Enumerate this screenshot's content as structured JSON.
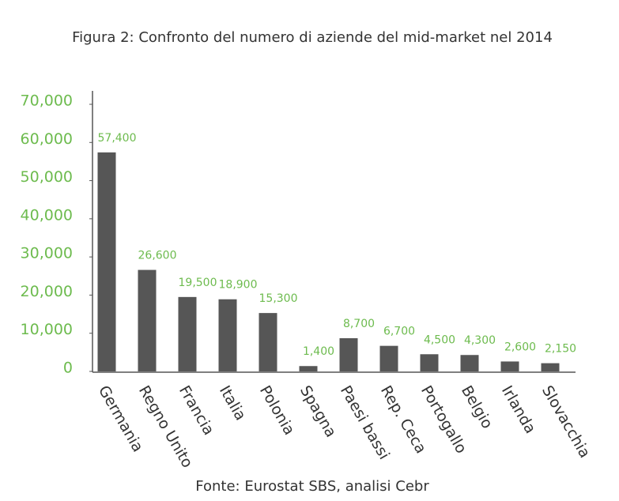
{
  "chart_data": {
    "type": "bar",
    "title": "Figura 2: Confronto del numero di aziende del mid-market nel 2014",
    "source": "Fonte: Eurostat SBS, analisi Cebr",
    "categories": [
      "Germania",
      "Regno Unito",
      "Francia",
      "Italia",
      "Polonia",
      "Spagna",
      "Paesi bassi",
      "Rep. Ceca",
      "Portogallo",
      "Belgio",
      "Irlanda",
      "Slovacchia"
    ],
    "values": [
      57400,
      26600,
      19500,
      18900,
      15300,
      1400,
      8700,
      6700,
      4500,
      4300,
      2600,
      2150
    ],
    "value_labels": [
      "57,400",
      "26,600",
      "19,500",
      "18,900",
      "15,300",
      "1,400",
      "8,700",
      "6,700",
      "4,500",
      "4,300",
      "2,600",
      "2,150"
    ],
    "color": "#565656",
    "label_color": "#6dbb4e",
    "ylim": [
      0,
      70000
    ],
    "yticks": [
      0,
      {
        "value": 10000,
        "label": "10,000"
      },
      {
        "value": 20000,
        "label": "20,000"
      },
      {
        "value": 30000,
        "label": "30,000"
      },
      {
        "value": 40000,
        "label": "40,000"
      },
      {
        "value": 50000,
        "label": "50,000"
      },
      {
        "value": 60000,
        "label": "60,000"
      },
      {
        "value": 70000,
        "label": "70,000"
      }
    ],
    "grid": false
  }
}
